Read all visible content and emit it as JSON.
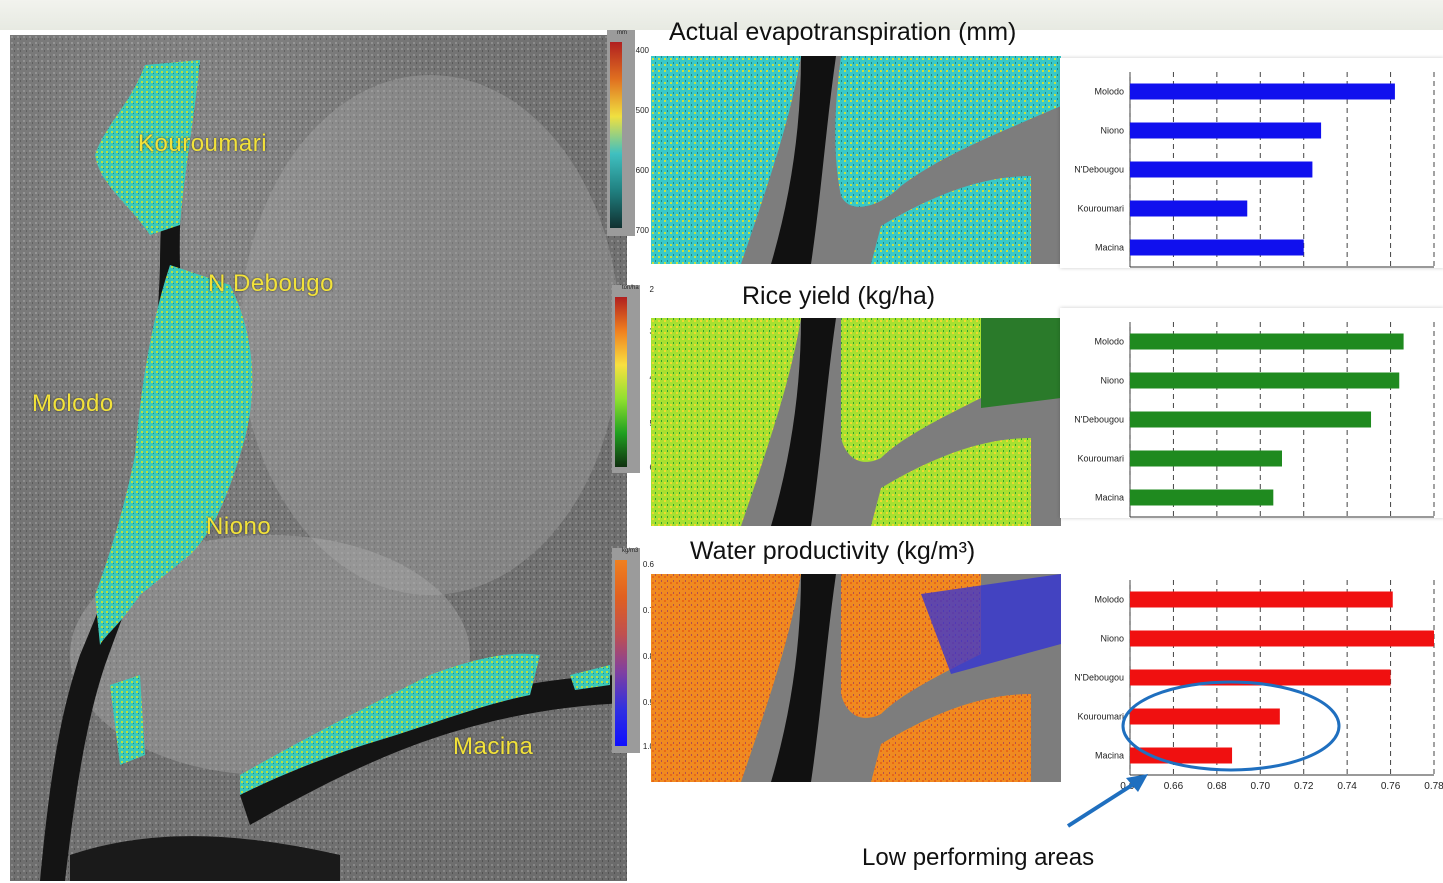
{
  "places": {
    "kouroumari": "Kouroumari",
    "n_debougo": "N Debougo",
    "molodo": "Molodo",
    "niono": "Niono",
    "macina": "Macina"
  },
  "panels": [
    {
      "title": "Actual evapotranspiration (mm)",
      "legend": {
        "unit": "mm",
        "ticks": [
          "400",
          "500",
          "600",
          "700"
        ],
        "colors": [
          "#b02020",
          "#e07020",
          "#f0e040",
          "#40c0c0",
          "#208080",
          "#103030"
        ]
      }
    },
    {
      "title": "Rice yield (kg/ha)",
      "legend": {
        "unit": "ton/ha",
        "ticks": [
          "2",
          "3",
          "4",
          "5",
          "6"
        ],
        "colors": [
          "#b02020",
          "#f08020",
          "#f8e040",
          "#90e030",
          "#20a020",
          "#103010"
        ]
      }
    },
    {
      "title": "Water productivity (kg/m³)",
      "legend": {
        "unit": "kg/m3",
        "ticks": [
          "0.6",
          "0.7",
          "0.8",
          "0.9",
          "1.0"
        ],
        "colors": [
          "#f08020",
          "#e06020",
          "#c05050",
          "#8040a0",
          "#3030e0",
          "#1010ff"
        ]
      }
    }
  ],
  "chart_data": [
    {
      "type": "bar",
      "orientation": "horizontal",
      "categories": [
        "Molodo",
        "Niono",
        "N'Debougou",
        "Kouroumari",
        "Macina"
      ],
      "values": [
        611,
        594,
        592,
        577,
        590
      ],
      "xlim": [
        550,
        620
      ],
      "xticks": [
        "550",
        "560",
        "570",
        "580",
        "590",
        "600",
        "610",
        "620"
      ],
      "color": "#1010ee"
    },
    {
      "type": "bar",
      "orientation": "horizontal",
      "categories": [
        "Molodo",
        "Niono",
        "N'Debougou",
        "Kouroumari",
        "Macina"
      ],
      "values": [
        4660,
        4640,
        4510,
        4100,
        4060
      ],
      "xlim": [
        3400,
        4800
      ],
      "xticks": [
        "3400",
        "3600",
        "3800",
        "4000",
        "4200",
        "4400",
        "4600",
        "4800"
      ],
      "color": "#1f8a1f"
    },
    {
      "type": "bar",
      "orientation": "horizontal",
      "categories": [
        "Molodo",
        "Niono",
        "N'Debougou",
        "Kouroumari",
        "Macina"
      ],
      "values": [
        0.761,
        0.78,
        0.76,
        0.709,
        0.687
      ],
      "xlim": [
        0.64,
        0.78
      ],
      "xticks": [
        "0.64",
        "0.66",
        "0.68",
        "0.70",
        "0.72",
        "0.74",
        "0.76",
        "0.78"
      ],
      "color": "#f01010"
    }
  ],
  "annotation": "Low performing areas"
}
